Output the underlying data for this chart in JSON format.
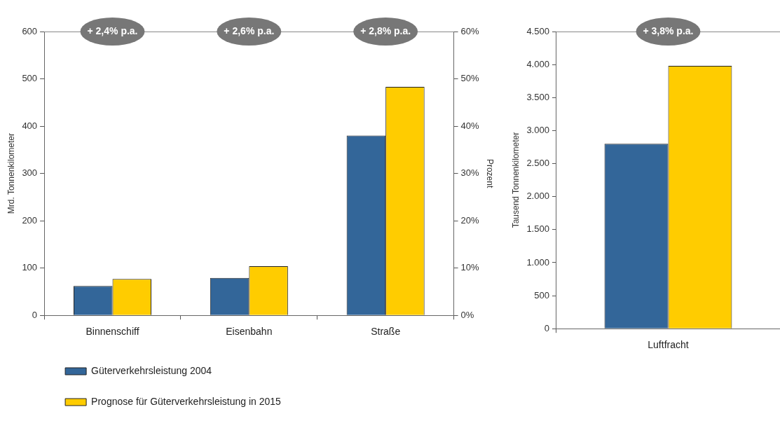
{
  "chart_data": [
    {
      "type": "bar",
      "ylabel": "Mrd. Tonnenkilometer",
      "y2label": "Prozent",
      "categories": [
        "Binnenschiff",
        "Eisenbahn",
        "Straße"
      ],
      "series": [
        {
          "name": "Güterverkehrsleistung 2004",
          "color": "#336699",
          "values": [
            62,
            79,
            380
          ]
        },
        {
          "name": "Prognose für Güterverkehrsleistung in 2015",
          "color": "#ffcc00",
          "values": [
            77,
            104,
            483
          ]
        }
      ],
      "ylim": [
        0,
        600
      ],
      "yticks": [
        0,
        100,
        200,
        300,
        400,
        500,
        600
      ],
      "y2lim": [
        0,
        60
      ],
      "y2ticks": [
        {
          "value": 0,
          "label": "0%"
        },
        {
          "value": 10,
          "label": "10%"
        },
        {
          "value": 20,
          "label": "20%"
        },
        {
          "value": 30,
          "label": "30%"
        },
        {
          "value": 40,
          "label": "40%"
        },
        {
          "value": 50,
          "label": "50%"
        },
        {
          "value": 60,
          "label": "60%"
        }
      ],
      "annotations": [
        "+ 2,4% p.a.",
        "+ 2,6% p.a.",
        "+ 2,8% p.a."
      ],
      "legend": "bottom"
    },
    {
      "type": "bar",
      "ylabel": "Tausend Tonnenkilometer",
      "categories": [
        "Luftfracht"
      ],
      "series": [
        {
          "color": "#336699",
          "values": [
            2800
          ]
        },
        {
          "color": "#ffcc00",
          "values": [
            3980
          ]
        }
      ],
      "ylim": [
        0,
        4500
      ],
      "yticks": [
        0,
        500,
        {
          "value": 1000,
          "label": "1.000"
        },
        {
          "value": 1500,
          "label": "1.500"
        },
        {
          "value": 2000,
          "label": "2.000"
        },
        {
          "value": 2500,
          "label": "2.500"
        },
        {
          "value": 3000,
          "label": "3.000"
        },
        {
          "value": 3500,
          "label": "3.500"
        },
        {
          "value": 4000,
          "label": "4.000"
        },
        {
          "value": 4500,
          "label": "4.500"
        }
      ],
      "annotations": [
        "+ 3,8% p.a."
      ]
    }
  ]
}
